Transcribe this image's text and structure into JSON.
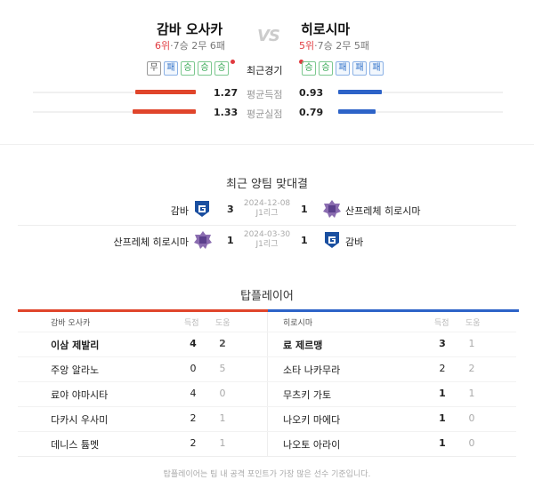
{
  "home": {
    "name": "감바 오사카",
    "rank": "6위",
    "record": "·7승 2무 6패",
    "recent": [
      "무",
      "패",
      "승",
      "승",
      "승"
    ],
    "avg_scored": "1.27",
    "avg_conceded": "1.33",
    "scored_pct": 0.37,
    "conceded_pct": 0.39
  },
  "away": {
    "name": "히로시마",
    "rank": "5위",
    "record": "·7승 2무 5패",
    "recent": [
      "승",
      "승",
      "패",
      "패",
      "패"
    ],
    "avg_scored": "0.93",
    "avg_conceded": "0.79",
    "scored_pct": 0.27,
    "conceded_pct": 0.23
  },
  "vs": "VS",
  "labels": {
    "recent": "최근경기",
    "avg_scored": "평균득점",
    "avg_conceded": "평균실점"
  },
  "colors": {
    "home": "#e0452b",
    "away": "#2d63c8",
    "win": "#2aa34a",
    "loss": "#2d6fc8"
  },
  "h2h": {
    "title": "최근 양팀 맞대결",
    "matches": [
      {
        "home": "감바",
        "home_score": "3",
        "date": "2024-12-08",
        "league": "J1리그",
        "away_score": "1",
        "away": "산프레체 히로시마"
      },
      {
        "home": "산프레체 히로시마",
        "home_score": "1",
        "date": "2024-03-30",
        "league": "J1리그",
        "away_score": "1",
        "away": "감바"
      }
    ]
  },
  "top": {
    "title": "탑플레이어",
    "goals": "득점",
    "assists": "도움",
    "home_team": "감바 오사카",
    "away_team": "히로시마",
    "home": [
      [
        "이삼 제발리",
        "4",
        "2"
      ],
      [
        "주앙 알라노",
        "0",
        "5"
      ],
      [
        "료야 야마시타",
        "4",
        "0"
      ],
      [
        "다카시 우사미",
        "2",
        "1"
      ],
      [
        "데니스 튬멧",
        "2",
        "1"
      ]
    ],
    "away": [
      [
        "료 제르맹",
        "3",
        "1"
      ],
      [
        "소타 나카무라",
        "2",
        "2"
      ],
      [
        "무츠키 가토",
        "1",
        "1"
      ],
      [
        "나오키 마에다",
        "1",
        "0"
      ],
      [
        "나오토 아라이",
        "1",
        "0"
      ]
    ],
    "note": "탑플레이어는 팀 내 공격 포인트가 가장 많은 선수 기준입니다."
  }
}
